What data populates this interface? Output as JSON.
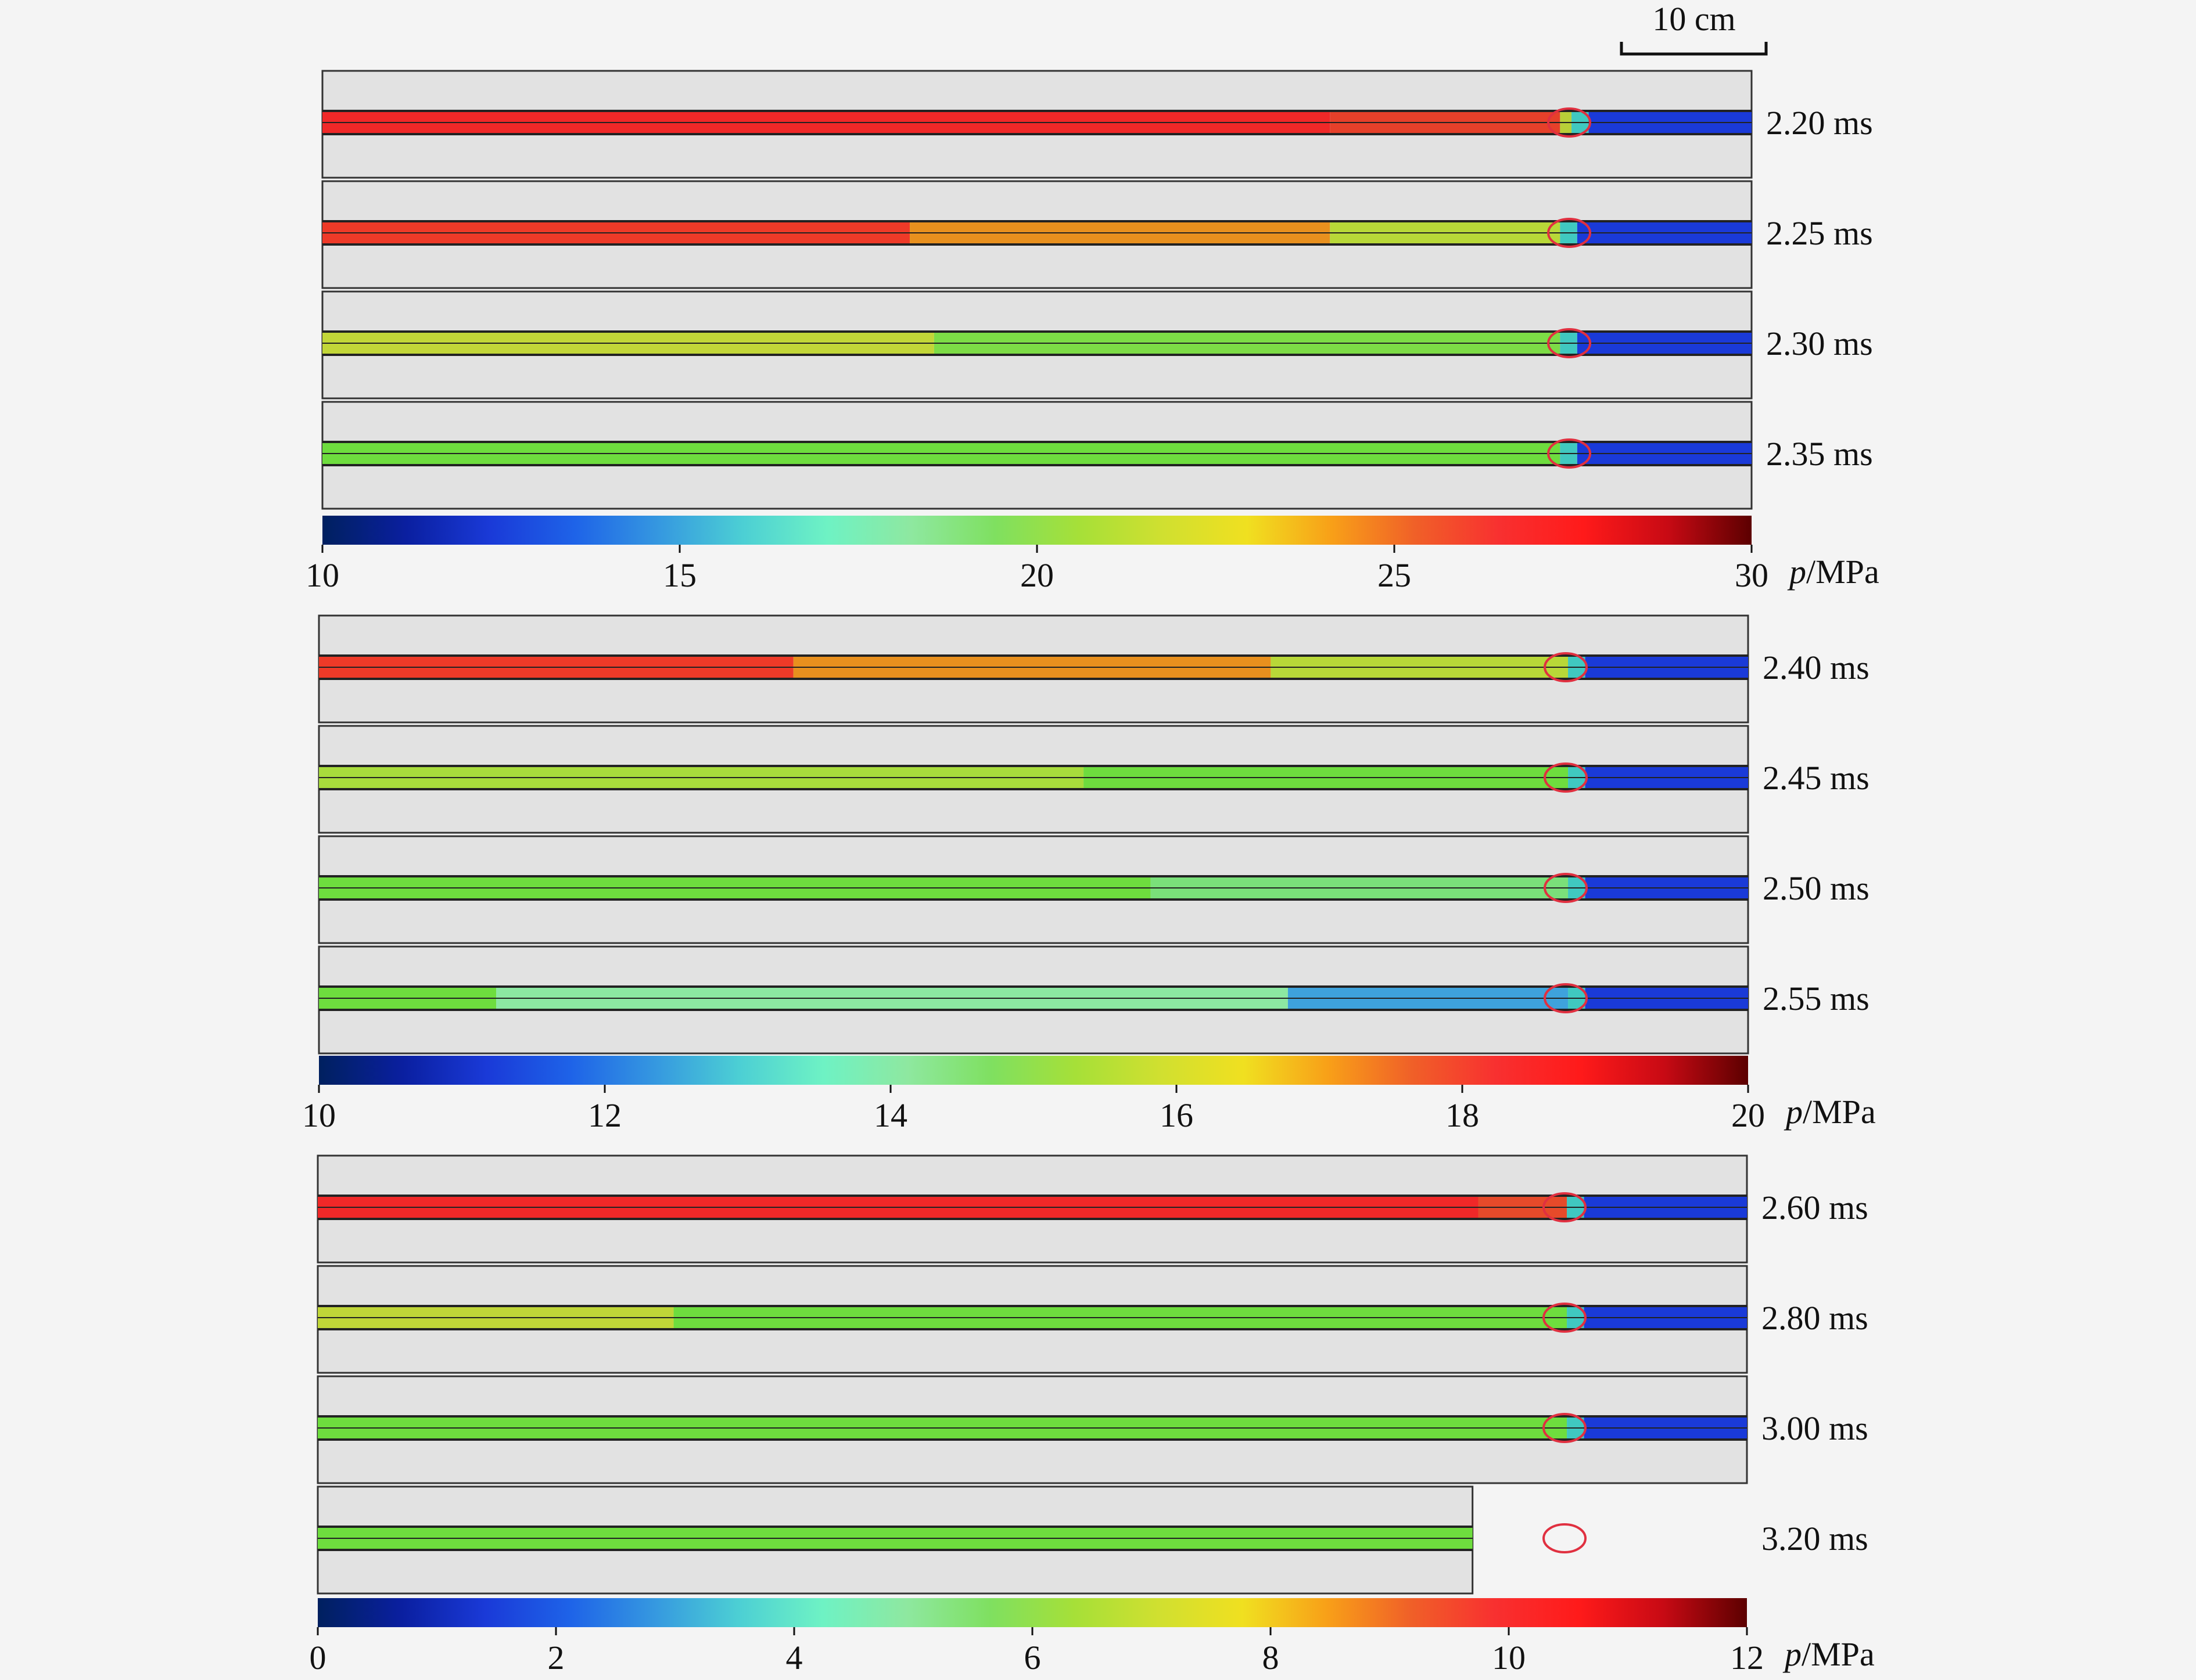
{
  "scale_bar": {
    "label": "10 cm"
  },
  "colors": {
    "background": "#f4f4f4",
    "frame_fill": "#e2e2e2",
    "frame_stroke": "#333333",
    "marker_ellipse": "#e03040",
    "colormap": [
      "#00205f",
      "#0a1fa0",
      "#1a3ad8",
      "#1e63e8",
      "#3598e0",
      "#4ccfd4",
      "#6ef2c4",
      "#8ee8a0",
      "#7fe060",
      "#a6e038",
      "#d0e030",
      "#f0e020",
      "#f8a018",
      "#f06028",
      "#f83030",
      "#ff1a1a",
      "#c80a14",
      "#5c0000"
    ]
  },
  "panels": [
    {
      "axis_label": "p/MPa",
      "ticks": [
        "10",
        "15",
        "20",
        "25",
        "30"
      ],
      "rows": [
        {
          "time": "2.20 ms",
          "segments": [
            {
              "to": 0.705,
              "color": "#f02828"
            },
            {
              "to": 0.866,
              "color": "#e6402a"
            },
            {
              "to": 0.874,
              "color": "#b8cf38"
            }
          ]
        },
        {
          "time": "2.25 ms",
          "segments": [
            {
              "to": 0.411,
              "color": "#ee3a28"
            },
            {
              "to": 0.705,
              "color": "#e8901e"
            },
            {
              "to": 0.866,
              "color": "#b8d838"
            }
          ]
        },
        {
          "time": "2.30 ms",
          "segments": [
            {
              "to": 0.428,
              "color": "#c2d638"
            },
            {
              "to": 0.866,
              "color": "#7ddc46"
            }
          ]
        },
        {
          "time": "2.35 ms",
          "segments": [
            {
              "to": 0.866,
              "color": "#6edd3e"
            }
          ]
        }
      ]
    },
    {
      "axis_label": "p/MPa",
      "ticks": [
        "10",
        "12",
        "14",
        "16",
        "18",
        "20"
      ],
      "rows": [
        {
          "time": "2.40 ms",
          "segments": [
            {
              "to": 0.332,
              "color": "#ee3a28"
            },
            {
              "to": 0.666,
              "color": "#e8901e"
            },
            {
              "to": 0.874,
              "color": "#b8d838"
            }
          ]
        },
        {
          "time": "2.45 ms",
          "segments": [
            {
              "to": 0.535,
              "color": "#a8dc3c"
            },
            {
              "to": 0.874,
              "color": "#6edd3e"
            }
          ]
        },
        {
          "time": "2.50 ms",
          "segments": [
            {
              "to": 0.582,
              "color": "#6edd3e"
            },
            {
              "to": 0.874,
              "color": "#7ae07a"
            }
          ]
        },
        {
          "time": "2.55 ms",
          "segments": [
            {
              "to": 0.124,
              "color": "#6edd3e"
            },
            {
              "to": 0.678,
              "color": "#8ce8a2"
            },
            {
              "to": 0.874,
              "color": "#3ea2dc"
            }
          ]
        }
      ]
    },
    {
      "axis_label": "p/MPa",
      "ticks": [
        "0",
        "2",
        "4",
        "6",
        "8",
        "10",
        "12"
      ],
      "rows": [
        {
          "time": "2.60 ms",
          "segments": [
            {
              "to": 0.812,
              "color": "#f02828"
            },
            {
              "to": 0.874,
              "color": "#e64a2a"
            }
          ]
        },
        {
          "time": "2.80 ms",
          "segments": [
            {
              "to": 0.249,
              "color": "#c0d638"
            },
            {
              "to": 0.874,
              "color": "#6edd3e"
            }
          ]
        },
        {
          "time": "3.00 ms",
          "segments": [
            {
              "to": 0.874,
              "color": "#6edd3e"
            }
          ]
        },
        {
          "time": "3.20 ms",
          "segments": [
            {
              "to": 0.808,
              "color": "#6edd3e"
            }
          ],
          "truncated": true
        }
      ]
    }
  ]
}
